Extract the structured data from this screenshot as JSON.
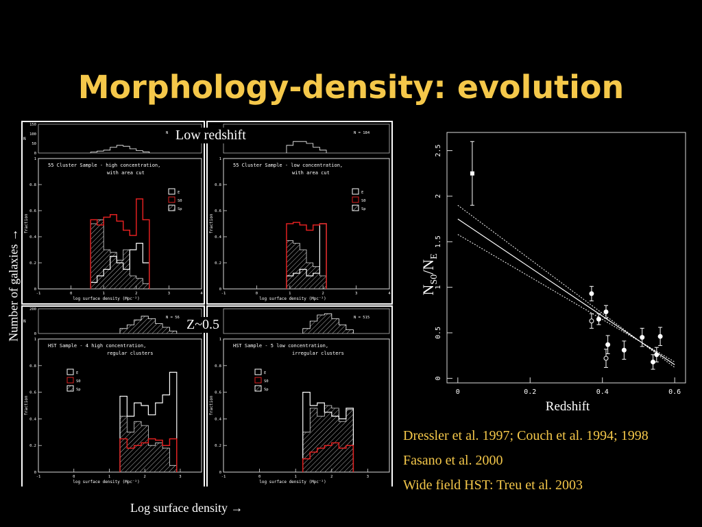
{
  "slide": {
    "title": "Morphology-density: evolution",
    "low_redshift_label": "Low redshift",
    "z_label": "Z~0.5",
    "y_axis_label": "Number of galaxies →",
    "x_axis_label": "Log surface density →",
    "references": [
      "Dressler et al. 1997; Couch et al. 1994; 1998",
      "Fasano et al.  2000",
      "Wide field HST: Treu et al. 2003"
    ]
  },
  "colors": {
    "title": "#f5c84a",
    "s0": "#e02020",
    "background": "#000000",
    "axes": "#ffffff"
  },
  "chart_data": [
    {
      "type": "bar",
      "panel": "top-left",
      "title": "55 Cluster Sample - high concentration,",
      "subtitle": "with area cut",
      "xlabel": "log surface density (Mpc⁻²)",
      "ylabel": "fraction",
      "top_ylabel": "N",
      "ntot_label": "N",
      "x_ticks": [
        "-1",
        "0",
        "1",
        "2",
        "3",
        "4"
      ],
      "y_ticks": [
        "0",
        "0.2",
        "0.4",
        "0.6",
        "0.8",
        "1"
      ],
      "top_y_ticks": [
        "0",
        "50",
        "100",
        "150"
      ],
      "legend": [
        "E",
        "S0",
        "Sp"
      ],
      "xlim": [
        -1,
        4
      ],
      "ylim": [
        0,
        1
      ],
      "top_ylim": [
        0,
        150
      ],
      "bin_edges": [
        0.6,
        0.8,
        1.0,
        1.2,
        1.4,
        1.6,
        1.8,
        2.0,
        2.2,
        2.4
      ],
      "series": [
        {
          "name": "E",
          "values": [
            0.05,
            0.1,
            0.15,
            0.25,
            0.2,
            0.15,
            0.3,
            0.35,
            0.2
          ]
        },
        {
          "name": "S0",
          "values": [
            0.53,
            0.49,
            0.55,
            0.57,
            0.52,
            0.45,
            0.41,
            0.69,
            0.53
          ]
        },
        {
          "name": "Sp",
          "values": [
            0.5,
            0.53,
            0.3,
            0.28,
            0.22,
            0.3,
            0.1,
            0.08,
            0.04
          ]
        }
      ],
      "counts": [
        5,
        10,
        15,
        30,
        40,
        35,
        22,
        12,
        6
      ]
    },
    {
      "type": "bar",
      "panel": "top-right",
      "title": "55 Cluster Sample - low concentration,",
      "subtitle": "with area cut",
      "xlabel": "log surface density (Mpc⁻²)",
      "ylabel": "fraction",
      "ntot_label": "N",
      "ntot_value": "184",
      "x_ticks": [
        "-1",
        "0",
        "1",
        "2",
        "3",
        "4"
      ],
      "y_ticks": [
        "0",
        "0.2",
        "0.4",
        "0.6",
        "0.8",
        "1"
      ],
      "legend": [
        "E",
        "S0",
        "Sp"
      ],
      "xlim": [
        -1,
        4
      ],
      "ylim": [
        0,
        1
      ],
      "top_ylim": [
        0,
        150
      ],
      "bin_edges": [
        0.9,
        1.1,
        1.3,
        1.5,
        1.7,
        1.9,
        2.1
      ],
      "series": [
        {
          "name": "E",
          "values": [
            0.1,
            0.12,
            0.15,
            0.1,
            0.12,
            0.5
          ]
        },
        {
          "name": "S0",
          "values": [
            0.5,
            0.51,
            0.49,
            0.45,
            0.49,
            0.5
          ]
        },
        {
          "name": "Sp",
          "values": [
            0.37,
            0.35,
            0.3,
            0.2,
            0.17,
            0.1
          ]
        }
      ],
      "counts": [
        40,
        60,
        60,
        50,
        30,
        15
      ]
    },
    {
      "type": "bar",
      "panel": "bottom-left",
      "title": "HST Sample - 4 high concentration,",
      "subtitle": "regular clusters",
      "xlabel": "log surface density (Mpc⁻²)",
      "ylabel": "fraction",
      "top_ylabel": "N",
      "ntot_label": "N",
      "ntot_value": "56",
      "x_ticks": [
        "-1",
        "0",
        "1",
        "2",
        "3"
      ],
      "y_ticks": [
        "0",
        "0.2",
        "0.4",
        "0.6",
        "0.8",
        "1"
      ],
      "top_y_ticks": [
        "0",
        "200"
      ],
      "legend": [
        "E",
        "S0",
        "Sp"
      ],
      "xlim": [
        -1,
        3.6
      ],
      "ylim": [
        0,
        1
      ],
      "top_ylim": [
        0,
        200
      ],
      "bin_edges": [
        1.3,
        1.5,
        1.7,
        1.9,
        2.1,
        2.3,
        2.5,
        2.7,
        2.9
      ],
      "series": [
        {
          "name": "E",
          "values": [
            0.57,
            0.42,
            0.52,
            0.5,
            0.43,
            0.52,
            0.58,
            0.75
          ]
        },
        {
          "name": "S0",
          "values": [
            0.25,
            0.18,
            0.2,
            0.22,
            0.25,
            0.24,
            0.2,
            0.25
          ]
        },
        {
          "name": "Sp",
          "values": [
            0.42,
            0.3,
            0.38,
            0.35,
            0.2,
            0.22,
            0.18,
            0.05
          ]
        }
      ],
      "counts": [
        40,
        70,
        110,
        140,
        120,
        80,
        50,
        20
      ]
    },
    {
      "type": "bar",
      "panel": "bottom-right",
      "title": "HST Sample - 5 low concentration,",
      "subtitle": "irregular clusters",
      "xlabel": "log surface density (Mpc⁻²)",
      "ylabel": "fraction",
      "ntot_label": "N",
      "ntot_value": "515",
      "x_ticks": [
        "-1",
        "0",
        "1",
        "2",
        "3"
      ],
      "y_ticks": [
        "0",
        "0.2",
        "0.4",
        "0.6",
        "0.8",
        "1"
      ],
      "legend": [
        "E",
        "S0",
        "Sp"
      ],
      "xlim": [
        -1,
        3.6
      ],
      "ylim": [
        0,
        1
      ],
      "top_ylim": [
        0,
        200
      ],
      "bin_edges": [
        1.2,
        1.4,
        1.6,
        1.8,
        2.0,
        2.2,
        2.4,
        2.6
      ],
      "series": [
        {
          "name": "E",
          "values": [
            0.6,
            0.5,
            0.52,
            0.45,
            0.42,
            0.4,
            0.48
          ]
        },
        {
          "name": "S0",
          "values": [
            0.1,
            0.15,
            0.18,
            0.2,
            0.22,
            0.18,
            0.2
          ]
        },
        {
          "name": "Sp",
          "values": [
            0.3,
            0.48,
            0.42,
            0.5,
            0.48,
            0.38,
            0.47
          ]
        }
      ],
      "counts": [
        40,
        100,
        150,
        160,
        120,
        70,
        30
      ]
    },
    {
      "type": "scatter",
      "panel": "right",
      "xlabel": "Redshift",
      "ylabel": "N",
      "ylabel_sub": "S0",
      "ylabel_mid": "/N",
      "ylabel_sub2": "E",
      "xlim": [
        -0.03,
        0.63
      ],
      "ylim": [
        -0.05,
        2.7
      ],
      "x_ticks": [
        "0",
        "0.2",
        "0.4",
        "0.6"
      ],
      "y_ticks": [
        "0",
        "0.5",
        "1",
        "1.5",
        "2",
        "2.5"
      ],
      "points": [
        {
          "x": 0.04,
          "y": 2.25,
          "err": 0.35,
          "marker": "square"
        },
        {
          "x": 0.37,
          "y": 0.93,
          "err": 0.08,
          "marker": "filled"
        },
        {
          "x": 0.37,
          "y": 0.63,
          "err": 0.08,
          "marker": "open"
        },
        {
          "x": 0.39,
          "y": 0.65,
          "err": 0.06,
          "marker": "filled"
        },
        {
          "x": 0.41,
          "y": 0.73,
          "err": 0.07,
          "marker": "filled"
        },
        {
          "x": 0.415,
          "y": 0.37,
          "err": 0.1,
          "marker": "filled"
        },
        {
          "x": 0.41,
          "y": 0.22,
          "err": 0.1,
          "marker": "open"
        },
        {
          "x": 0.46,
          "y": 0.31,
          "err": 0.1,
          "marker": "filled"
        },
        {
          "x": 0.51,
          "y": 0.45,
          "err": 0.1,
          "marker": "filled"
        },
        {
          "x": 0.54,
          "y": 0.18,
          "err": 0.08,
          "marker": "filled"
        },
        {
          "x": 0.55,
          "y": 0.26,
          "err": 0.08,
          "marker": "filled"
        },
        {
          "x": 0.56,
          "y": 0.46,
          "err": 0.1,
          "marker": "filled"
        }
      ],
      "fit": {
        "x0": 0.0,
        "y0": 1.75,
        "x1": 0.6,
        "y1": 0.15
      },
      "fit_upper": {
        "x0": 0.0,
        "y0": 1.9,
        "x1": 0.6,
        "y1": 0.12
      },
      "fit_lower": {
        "x0": 0.0,
        "y0": 1.58,
        "x1": 0.6,
        "y1": 0.18
      }
    }
  ]
}
